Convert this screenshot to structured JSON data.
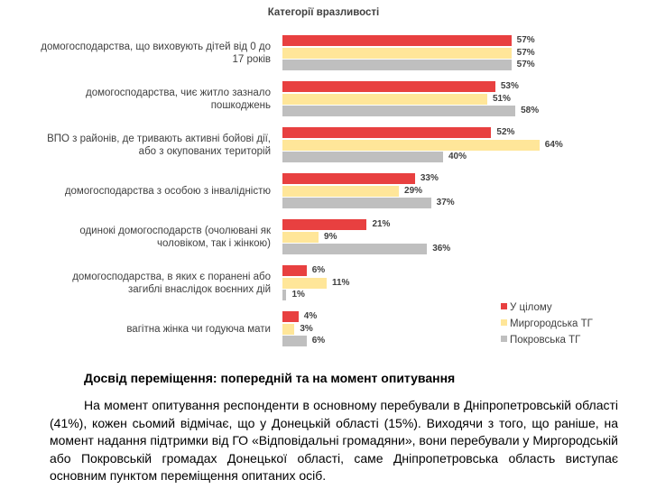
{
  "chart_data": {
    "type": "bar",
    "orientation": "horizontal",
    "title": "Категорії вразливості",
    "categories": [
      "домогосподарства, що виховують дітей від 0 до 17 років",
      "домогосподарства, чиє житло зазнало пошкоджень",
      "ВПО з районів, де тривають активні бойові дії, або з окупованих територій",
      "домогосподарства з особою з інвалідністю",
      "одинокі домогосподарств (очолювані як чоловіком, так і жінкою)",
      "домогосподарства, в яких є поранені або загиблі внаслідок воєнних дій",
      "вагітна жінка чи годуюча мати"
    ],
    "series": [
      {
        "name": "У цілому",
        "color": "#e84040",
        "values": [
          57,
          53,
          52,
          33,
          21,
          6,
          4
        ]
      },
      {
        "name": "Миргородська ТГ",
        "color": "#ffe699",
        "values": [
          57,
          51,
          64,
          29,
          9,
          11,
          3
        ]
      },
      {
        "name": "Покровська ТГ",
        "color": "#bfbfbf",
        "values": [
          57,
          58,
          40,
          37,
          36,
          1,
          6
        ]
      }
    ],
    "value_suffix": "%",
    "xlim": [
      0,
      100
    ],
    "legend_position": "right",
    "grid": false
  },
  "section": {
    "heading": "Досвід переміщення: попередній та на момент опитування",
    "paragraph": "На момент опитування респонденти в основному перебували в Дніпропетровській області (41%), кожен сьомий відмічає, що у Донецькій області (15%). Виходячи з того, що раніше, на момент надання підтримки від ГО «Відповідальні громадяни», вони перебували у Миргородській або Покровській громадах Донецької області, саме Дніпропетровська область виступає основним пунктом переміщення опитаних осіб."
  }
}
